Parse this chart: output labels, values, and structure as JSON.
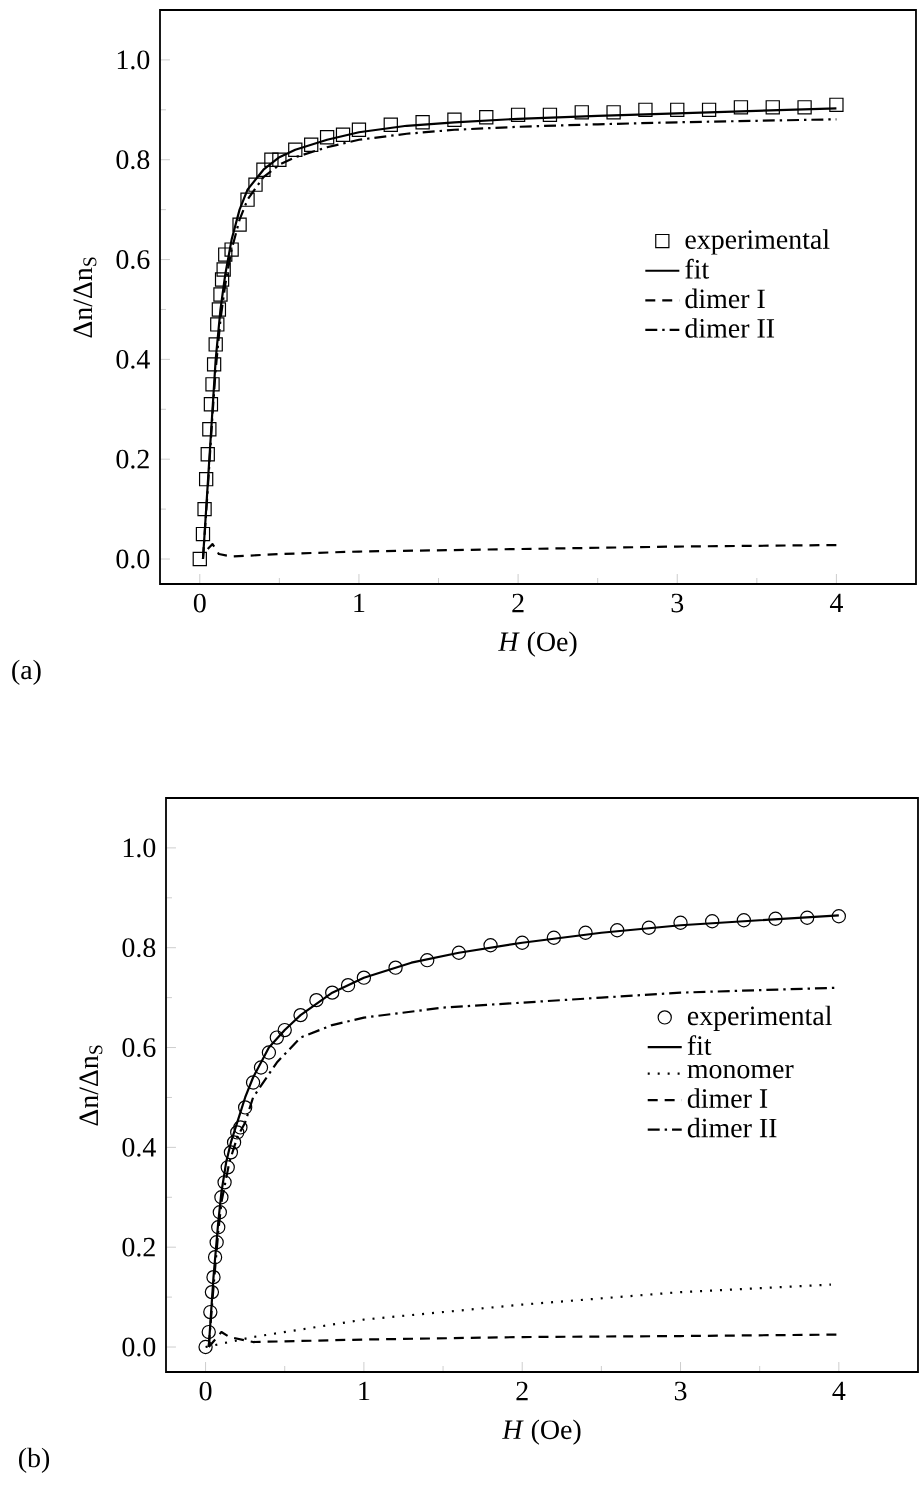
{
  "chart_data": [
    {
      "type": "line",
      "xlabel": "*H* (Oe)",
      "ylabel": "Δn/Δn$_{S}$",
      "annotations": [
        "(a)"
      ],
      "xlim": [
        -0.25,
        4.5
      ],
      "ylim": [
        -0.05,
        1.1
      ],
      "xticks": [
        0,
        1,
        2,
        3,
        4
      ],
      "yticks": [
        {
          "value": 0,
          "label": "0.0"
        },
        {
          "value": 0.2,
          "label": "0.2"
        },
        {
          "value": 0.4,
          "label": "0.4"
        },
        {
          "value": 0.6,
          "label": "0.6"
        },
        {
          "value": 0.8,
          "label": "0.8"
        },
        {
          "value": 1.0,
          "label": "1.0"
        }
      ],
      "legend": "center right",
      "grid": false,
      "series": [
        {
          "name": "experimental",
          "type": "scatter",
          "marker": "square",
          "color": "#000000",
          "x": [
            0,
            0.02,
            0.03,
            0.04,
            0.05,
            0.06,
            0.07,
            0.08,
            0.09,
            0.1,
            0.11,
            0.12,
            0.13,
            0.14,
            0.15,
            0.16,
            0.2,
            0.25,
            0.3,
            0.35,
            0.4,
            0.45,
            0.5,
            0.6,
            0.7,
            0.8,
            0.9,
            1.0,
            1.2,
            1.4,
            1.6,
            1.8,
            2.0,
            2.2,
            2.4,
            2.6,
            2.8,
            3.0,
            3.2,
            3.4,
            3.6,
            3.8,
            4.0
          ],
          "values": [
            0,
            0.05,
            0.1,
            0.16,
            0.21,
            0.26,
            0.31,
            0.35,
            0.39,
            0.43,
            0.47,
            0.5,
            0.53,
            0.56,
            0.58,
            0.61,
            0.62,
            0.67,
            0.72,
            0.75,
            0.78,
            0.8,
            0.8,
            0.82,
            0.83,
            0.845,
            0.85,
            0.86,
            0.87,
            0.875,
            0.88,
            0.885,
            0.89,
            0.89,
            0.895,
            0.895,
            0.9,
            0.9,
            0.9,
            0.905,
            0.905,
            0.905,
            0.91
          ]
        },
        {
          "name": "fit",
          "type": "line",
          "line_style": "solid",
          "color": "#000000",
          "x": [
            0.02,
            0.05,
            0.08,
            0.1,
            0.13,
            0.16,
            0.2,
            0.25,
            0.3,
            0.4,
            0.5,
            0.6,
            0.8,
            1.0,
            1.3,
            1.6,
            2.0,
            2.5,
            3.0,
            3.5,
            4.0
          ],
          "values": [
            0,
            0.15,
            0.3,
            0.4,
            0.5,
            0.57,
            0.64,
            0.7,
            0.74,
            0.78,
            0.805,
            0.82,
            0.84,
            0.855,
            0.868,
            0.875,
            0.882,
            0.888,
            0.893,
            0.898,
            0.903
          ]
        },
        {
          "name": "dimer I",
          "type": "line",
          "line_style": "dashed",
          "color": "#000000",
          "x": [
            0.05,
            0.08,
            0.12,
            0.2,
            0.5,
            1.0,
            2.0,
            3.0,
            4.0
          ],
          "values": [
            0.02,
            0.03,
            0.01,
            0.005,
            0.01,
            0.015,
            0.02,
            0.025,
            0.028
          ]
        },
        {
          "name": "dimer II",
          "type": "line",
          "line_style": "dashdot",
          "color": "#000000",
          "x": [
            0.02,
            0.05,
            0.08,
            0.1,
            0.13,
            0.16,
            0.2,
            0.25,
            0.3,
            0.4,
            0.5,
            0.6,
            0.8,
            1.0,
            1.3,
            1.6,
            2.0,
            2.5,
            3.0,
            3.5,
            4.0
          ],
          "values": [
            0,
            0.14,
            0.29,
            0.38,
            0.48,
            0.55,
            0.62,
            0.68,
            0.72,
            0.765,
            0.79,
            0.805,
            0.825,
            0.84,
            0.852,
            0.86,
            0.866,
            0.871,
            0.875,
            0.878,
            0.881
          ]
        }
      ]
    },
    {
      "type": "line",
      "xlabel": "*H* (Oe)",
      "ylabel": "Δn/Δn$_{S}$",
      "annotations": [
        "(b)"
      ],
      "xlim": [
        -0.25,
        4.5
      ],
      "ylim": [
        -0.05,
        1.1
      ],
      "xticks": [
        0,
        1,
        2,
        3,
        4
      ],
      "yticks": [
        {
          "value": 0,
          "label": "0.0"
        },
        {
          "value": 0.2,
          "label": "0.2"
        },
        {
          "value": 0.4,
          "label": "0.4"
        },
        {
          "value": 0.6,
          "label": "0.6"
        },
        {
          "value": 0.8,
          "label": "0.8"
        },
        {
          "value": 1.0,
          "label": "1.0"
        }
      ],
      "legend": "center right",
      "grid": false,
      "series": [
        {
          "name": "experimental",
          "type": "scatter",
          "marker": "circle",
          "color": "#000000",
          "x": [
            0,
            0.02,
            0.03,
            0.04,
            0.05,
            0.06,
            0.07,
            0.08,
            0.09,
            0.1,
            0.12,
            0.14,
            0.16,
            0.18,
            0.2,
            0.22,
            0.25,
            0.3,
            0.35,
            0.4,
            0.45,
            0.5,
            0.6,
            0.7,
            0.8,
            0.9,
            1.0,
            1.2,
            1.4,
            1.6,
            1.8,
            2.0,
            2.2,
            2.4,
            2.6,
            2.8,
            3.0,
            3.2,
            3.4,
            3.6,
            3.8,
            4.0
          ],
          "values": [
            0,
            0.03,
            0.07,
            0.11,
            0.14,
            0.18,
            0.21,
            0.24,
            0.27,
            0.3,
            0.33,
            0.36,
            0.39,
            0.41,
            0.43,
            0.44,
            0.48,
            0.53,
            0.56,
            0.59,
            0.62,
            0.635,
            0.665,
            0.695,
            0.71,
            0.725,
            0.74,
            0.76,
            0.775,
            0.79,
            0.805,
            0.81,
            0.82,
            0.83,
            0.835,
            0.84,
            0.85,
            0.853,
            0.855,
            0.858,
            0.86,
            0.863
          ]
        },
        {
          "name": "fit",
          "type": "line",
          "line_style": "solid",
          "color": "#000000",
          "x": [
            0.02,
            0.05,
            0.08,
            0.1,
            0.13,
            0.16,
            0.2,
            0.25,
            0.3,
            0.4,
            0.5,
            0.6,
            0.8,
            1.0,
            1.3,
            1.6,
            2.0,
            2.5,
            3.0,
            3.5,
            4.0
          ],
          "values": [
            0,
            0.14,
            0.25,
            0.31,
            0.37,
            0.41,
            0.45,
            0.5,
            0.54,
            0.6,
            0.635,
            0.665,
            0.71,
            0.74,
            0.77,
            0.79,
            0.81,
            0.83,
            0.845,
            0.855,
            0.865
          ]
        },
        {
          "name": "monomer",
          "type": "line",
          "line_style": "dotted",
          "color": "#000000",
          "x": [
            0,
            0.3,
            0.8,
            1.0,
            2.0,
            3.0,
            3.95
          ],
          "values": [
            0,
            0.02,
            0.045,
            0.055,
            0.085,
            0.11,
            0.125
          ]
        },
        {
          "name": "dimer I",
          "type": "line",
          "line_style": "dashed",
          "color": "#000000",
          "x": [
            0.02,
            0.1,
            0.15,
            0.3,
            1.0,
            2.0,
            3.0,
            4.0
          ],
          "values": [
            0,
            0.03,
            0.02,
            0.01,
            0.015,
            0.02,
            0.022,
            0.025
          ]
        },
        {
          "name": "dimer II",
          "type": "line",
          "line_style": "dashdot",
          "color": "#000000",
          "x": [
            0.02,
            0.05,
            0.08,
            0.1,
            0.15,
            0.2,
            0.25,
            0.3,
            0.45,
            0.6,
            0.8,
            1.0,
            1.5,
            2.0,
            2.5,
            3.0,
            3.5,
            4.0
          ],
          "values": [
            0,
            0.12,
            0.23,
            0.29,
            0.37,
            0.42,
            0.45,
            0.5,
            0.57,
            0.62,
            0.645,
            0.66,
            0.68,
            0.69,
            0.7,
            0.71,
            0.715,
            0.72
          ]
        }
      ]
    }
  ]
}
